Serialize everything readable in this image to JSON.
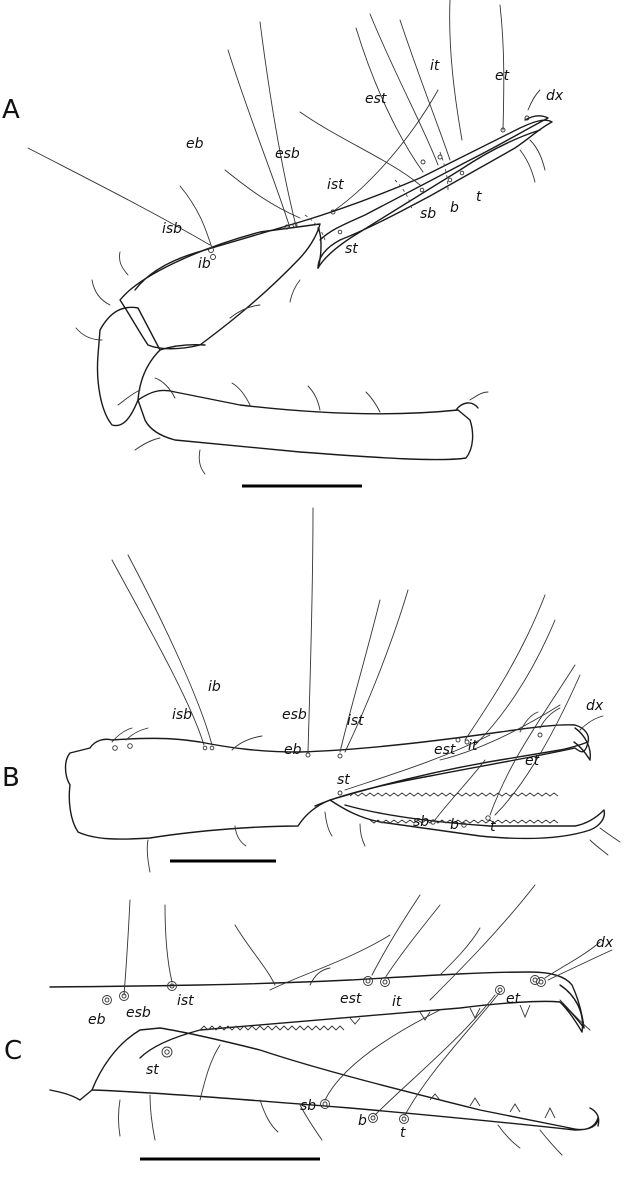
{
  "panels": [
    {
      "letter": "A",
      "labels": {
        "it": "it",
        "et": "et",
        "dx": "dx",
        "est": "est",
        "eb": "eb",
        "esb": "esb",
        "ist": "ist",
        "isb": "isb",
        "ib": "ib",
        "sb": "sb",
        "b": "b",
        "t": "t",
        "st": "st"
      }
    },
    {
      "letter": "B",
      "labels": {
        "ib": "ib",
        "isb": "isb",
        "esb": "esb",
        "ist": "ist",
        "dx": "dx",
        "est": "est",
        "it": "it",
        "eb": "eb",
        "et": "et",
        "st": "st",
        "sb": "sb",
        "b": "b",
        "t": "t"
      }
    },
    {
      "letter": "C",
      "labels": {
        "dx": "dx",
        "eb": "eb",
        "esb": "esb",
        "ist": "ist",
        "est": "est",
        "it": "it",
        "et": "et",
        "st": "st",
        "sb": "sb",
        "b": "b",
        "t": "t"
      }
    }
  ]
}
